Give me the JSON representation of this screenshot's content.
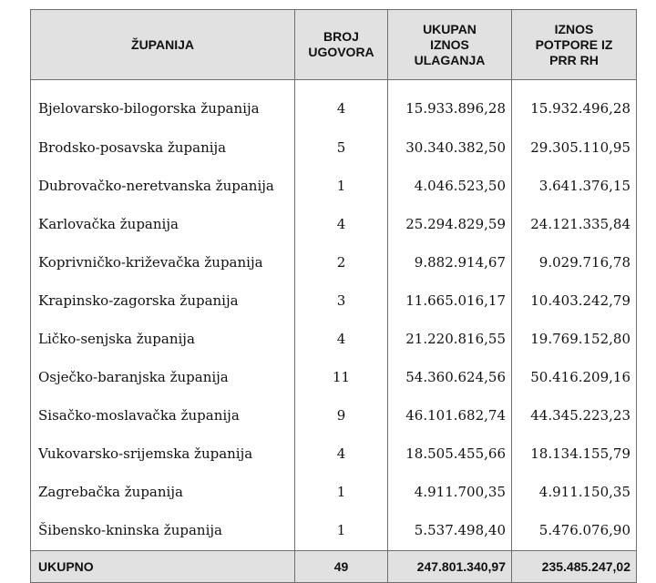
{
  "table": {
    "headers": [
      "ŽUPANIJA",
      "BROJ\nUGOVORA",
      "UKUPAN\nIZNOS\nULAGANJA",
      "IZNOS\nPOTPORE IZ\nPRR RH"
    ],
    "rows": [
      [
        "Bjelovarsko-bilogorska županija",
        "4",
        "15.933.896,28",
        "15.932.496,28"
      ],
      [
        "Brodsko-posavska županija",
        "5",
        "30.340.382,50",
        "29.305.110,95"
      ],
      [
        "Dubrovačko-neretvanska županija",
        "1",
        "4.046.523,50",
        "3.641.376,15"
      ],
      [
        "Karlovačka županija",
        "4",
        "25.294.829,59",
        "24.121.335,84"
      ],
      [
        "Koprivničko-križevačka županija",
        "2",
        "9.882.914,67",
        "9.029.716,78"
      ],
      [
        "Krapinsko-zagorska županija",
        "3",
        "11.665.016,17",
        "10.403.242,79"
      ],
      [
        "Ličko-senjska županija",
        "4",
        "21.220.816,55",
        "19.769.152,80"
      ],
      [
        "Osječko-baranjska županija",
        "11",
        "54.360.624,56",
        "50.416.209,16"
      ],
      [
        "Sisačko-moslavačka županija",
        "9",
        "46.101.682,74",
        "44.345.223,23"
      ],
      [
        "Vukovarsko-srijemska županija",
        "4",
        "18.505.455,66",
        "18.134.155,79"
      ],
      [
        "Zagrebačka županija",
        "1",
        "4.911.700,35",
        "4.911.150,35"
      ],
      [
        "Šibensko-kninska županija",
        "1",
        "5.537.498,40",
        "5.476.076,90"
      ]
    ],
    "total": [
      "UKUPNO",
      "49",
      "247.801.340,97",
      "235.485.247,02"
    ]
  }
}
